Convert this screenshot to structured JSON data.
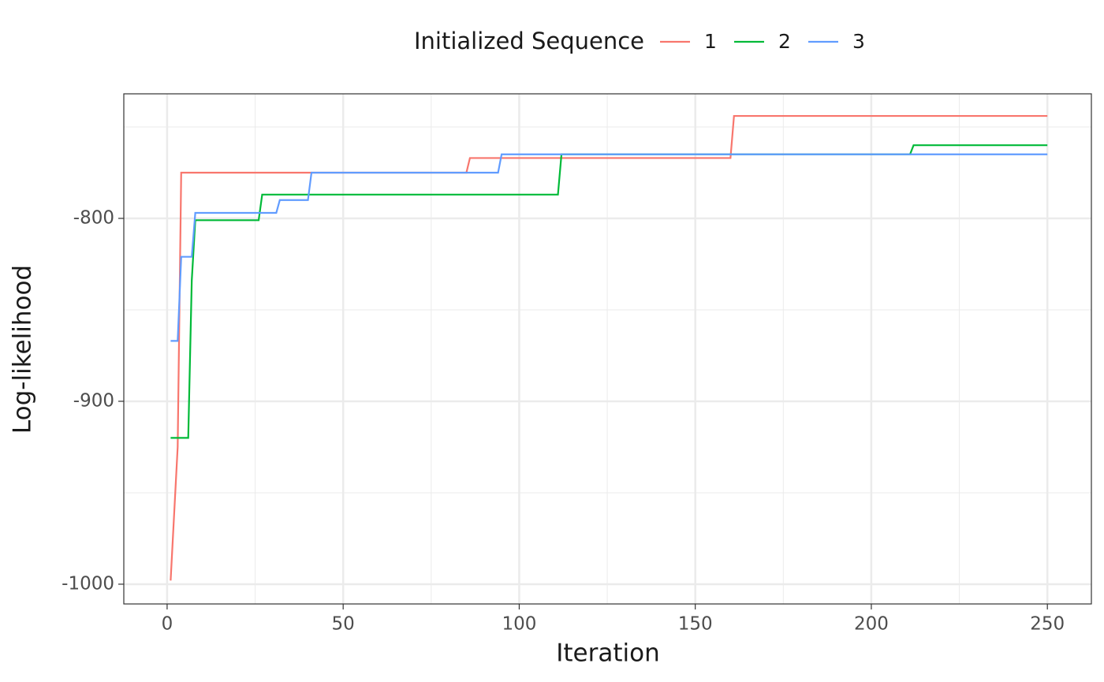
{
  "chart_data": {
    "type": "line",
    "x_label": "Iteration",
    "y_label": "Log-likelihood",
    "legend_title": "Initialized Sequence",
    "legend_position": "top",
    "xlim": [
      -12.3,
      262.5
    ],
    "ylim": [
      -1010.8,
      -731.9
    ],
    "xticks": [
      0,
      50,
      100,
      150,
      200,
      250
    ],
    "yticks": [
      -1000,
      -900,
      -800
    ],
    "x_minor_grid": [
      25,
      75,
      125,
      175,
      225
    ],
    "y_minor_grid": [
      -950,
      -850,
      -750
    ],
    "grid": true,
    "series": [
      {
        "name": "1",
        "color": "#f8766d",
        "x": [
          1,
          3,
          4,
          85,
          86,
          160,
          161,
          250
        ],
        "values": [
          -998,
          -925,
          -775,
          -775,
          -767,
          -767,
          -744,
          -744
        ]
      },
      {
        "name": "2",
        "color": "#00ba38",
        "x": [
          1,
          6,
          7,
          8,
          26,
          27,
          111,
          112,
          211,
          212,
          250
        ],
        "values": [
          -920,
          -920,
          -834,
          -801,
          -801,
          -787,
          -787,
          -765,
          -765,
          -760,
          -760
        ]
      },
      {
        "name": "3",
        "color": "#619cff",
        "x": [
          1,
          3,
          4,
          7,
          8,
          31,
          32,
          40,
          41,
          94,
          95,
          250
        ],
        "values": [
          -867,
          -867,
          -821,
          -821,
          -797,
          -797,
          -790,
          -790,
          -775,
          -775,
          -765,
          -765
        ]
      }
    ]
  }
}
